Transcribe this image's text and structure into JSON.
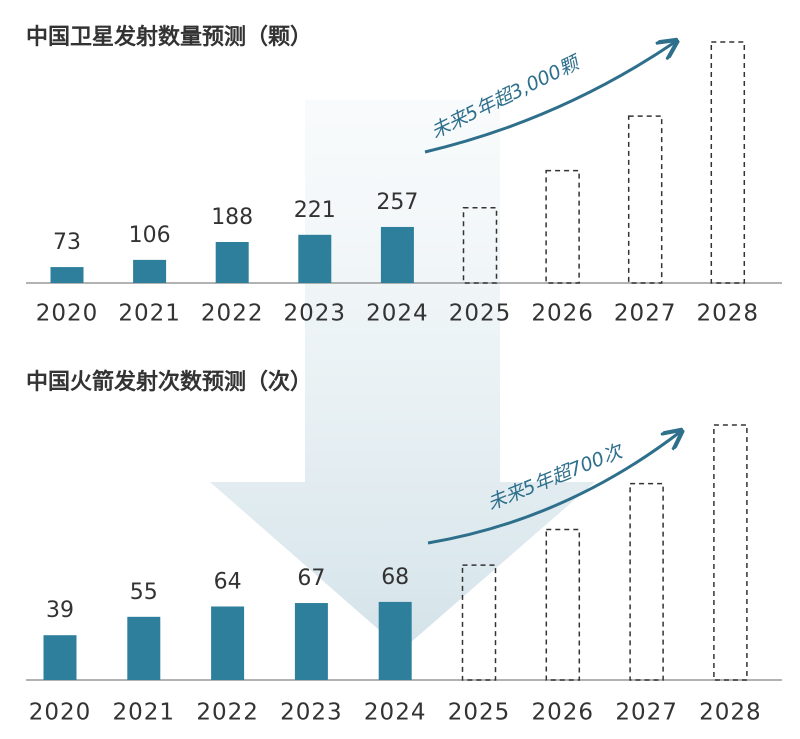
{
  "chart_data": [
    {
      "type": "bar",
      "title": "中国卫星发射数量预测（颗）",
      "categories": [
        "2020",
        "2021",
        "2022",
        "2023",
        "2024",
        "2025",
        "2026",
        "2027",
        "2028"
      ],
      "series": [
        {
          "color": "#2e7f9c",
          "data_labels": true,
          "values": [
            73,
            106,
            188,
            221,
            257,
            null,
            null,
            null,
            null
          ]
        },
        {
          "color": "#333333",
          "style": "dashed",
          "values": [
            null,
            null,
            null,
            null,
            null,
            345,
            515,
            765,
            1105
          ]
        }
      ],
      "annotation": "未来5年超3,000颗"
    },
    {
      "type": "bar",
      "title": "中国火箭发射次数预测（次）",
      "categories": [
        "2020",
        "2021",
        "2022",
        "2023",
        "2024",
        "2025",
        "2026",
        "2027",
        "2028"
      ],
      "series": [
        {
          "color": "#2e7f9c",
          "data_labels": true,
          "values": [
            39,
            55,
            64,
            67,
            68,
            null,
            null,
            null,
            null
          ]
        },
        {
          "color": "#333333",
          "style": "dashed",
          "values": [
            null,
            null,
            null,
            null,
            null,
            100,
            131,
            171,
            222
          ]
        }
      ],
      "annotation": "未来5年超700次"
    }
  ]
}
